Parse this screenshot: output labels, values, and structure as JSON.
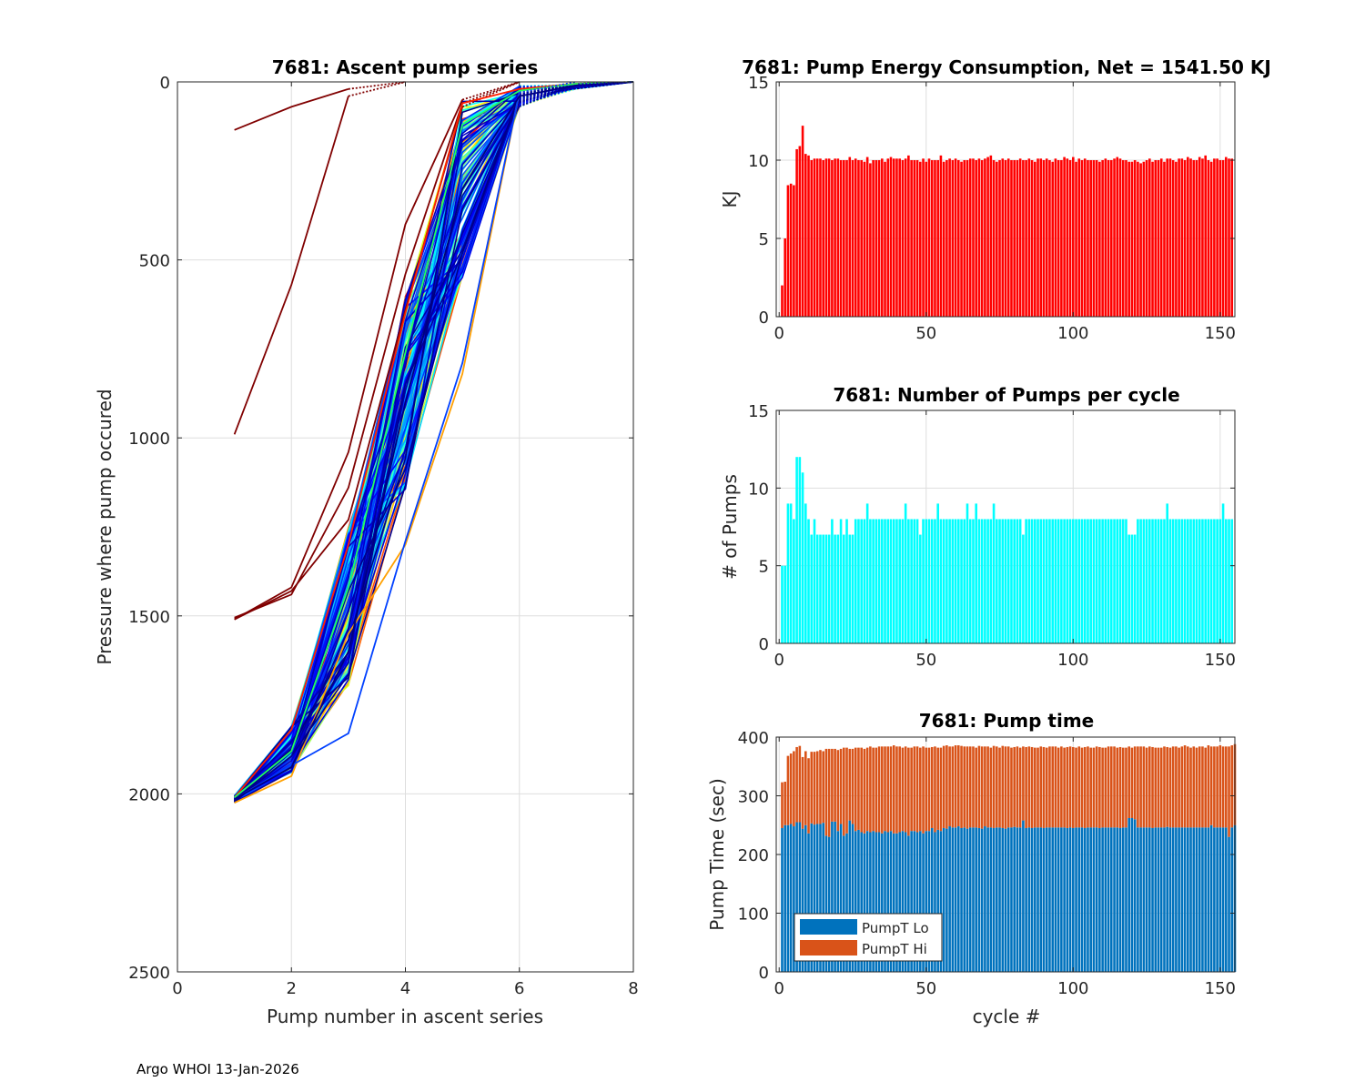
{
  "footer": "Argo WHOI 13-Jan-2026",
  "colors": {
    "energy_bar": "#ff0000",
    "pumps_bar": "#00ffff",
    "pumpt_lo": "#0072bd",
    "pumpt_hi": "#d95319",
    "grid": "#dedede",
    "axis": "#262626"
  },
  "chart_data": [
    {
      "id": "ascent",
      "type": "line",
      "title": "7681: Ascent pump series",
      "xlabel": "Pump number in ascent series",
      "ylabel": "Pressure where pump occured",
      "xlim": [
        0,
        8
      ],
      "ylim": [
        0,
        2500
      ],
      "y_reversed": true,
      "xticks": [
        0,
        2,
        4,
        6,
        8
      ],
      "yticks": [
        0,
        500,
        1000,
        1500,
        2000,
        2500
      ],
      "grid": true,
      "colormap": "jet",
      "series_count_approx": 155,
      "notes": "Each cycle is one line; colour by cycle (jet: early=dark red, late=dark blue). Final segments to surface drawn dotted.",
      "sample_series": [
        {
          "name": "cycle-1",
          "color": "#800000",
          "x": [
            1,
            2,
            3,
            4
          ],
          "y": [
            135,
            70,
            20,
            0
          ]
        },
        {
          "name": "cycle-2",
          "color": "#800000",
          "x": [
            1,
            2,
            3,
            4
          ],
          "y": [
            990,
            570,
            40,
            0
          ]
        },
        {
          "name": "cycle-3",
          "color": "#800000",
          "x": [
            1,
            2,
            3,
            4,
            5,
            6
          ],
          "y": [
            1510,
            1420,
            1040,
            400,
            50,
            0
          ]
        },
        {
          "name": "cycle-4",
          "color": "#800000",
          "x": [
            1,
            2,
            3,
            4,
            5,
            6
          ],
          "y": [
            1505,
            1440,
            1140,
            540,
            60,
            0
          ]
        },
        {
          "name": "cycle-5",
          "color": "#800000",
          "x": [
            1,
            2,
            3,
            4,
            5,
            6
          ],
          "y": [
            1510,
            1430,
            1230,
            640,
            70,
            0
          ]
        },
        {
          "name": "typical-early",
          "color": "#ff2000",
          "x": [
            1,
            2,
            3,
            4,
            5,
            6,
            7,
            8
          ],
          "y": [
            2010,
            1820,
            1300,
            650,
            60,
            20,
            5,
            0
          ]
        },
        {
          "name": "typical-mid",
          "color": "#20ff60",
          "x": [
            1,
            2,
            3,
            4,
            5,
            6,
            7,
            8
          ],
          "y": [
            2010,
            1880,
            1420,
            760,
            120,
            25,
            5,
            0
          ]
        },
        {
          "name": "outlier-orange",
          "color": "#ffa000",
          "x": [
            1,
            2,
            3,
            4,
            5,
            6,
            7
          ],
          "y": [
            2025,
            1950,
            1550,
            1300,
            820,
            30,
            0
          ]
        },
        {
          "name": "outlier-blue",
          "color": "#0040ff",
          "x": [
            1,
            2,
            3,
            4,
            5,
            6,
            7
          ],
          "y": [
            2015,
            1920,
            1830,
            1290,
            790,
            30,
            0
          ]
        },
        {
          "name": "typical-late",
          "color": "#000080",
          "x": [
            1,
            2,
            3,
            4,
            5,
            6,
            7,
            8
          ],
          "y": [
            2015,
            1925,
            1600,
            900,
            300,
            40,
            10,
            0
          ]
        }
      ]
    },
    {
      "id": "energy",
      "type": "bar",
      "title": "7681: Pump Energy Consumption,  Net = 1541.50 KJ",
      "xlabel": "",
      "ylabel": "KJ",
      "xlim": [
        -1,
        155
      ],
      "ylim": [
        0,
        15
      ],
      "xticks": [
        0,
        50,
        100,
        150
      ],
      "yticks": [
        0,
        5,
        10,
        15
      ],
      "grid": true,
      "x": "cycles 1..154",
      "values": [
        2.0,
        5.0,
        8.4,
        8.5,
        8.4,
        10.7,
        10.9,
        12.2,
        10.4,
        10.3,
        10.0,
        10.1,
        10.1,
        10.1,
        10.0,
        10.1,
        10.1,
        10.0,
        10.1,
        10.1,
        10.0,
        10.0,
        10.0,
        10.2,
        10.0,
        10.1,
        10.0,
        10.0,
        9.9,
        10.2,
        9.8,
        10.0,
        10.0,
        10.0,
        10.1,
        9.9,
        10.1,
        10.2,
        10.1,
        10.1,
        10.1,
        10.0,
        10.1,
        10.3,
        10.0,
        10.0,
        10.0,
        9.9,
        10.1,
        9.9,
        10.1,
        10.0,
        10.0,
        10.0,
        10.3,
        9.9,
        10.0,
        10.1,
        10.0,
        10.1,
        10.0,
        9.9,
        10.0,
        10.0,
        10.1,
        10.1,
        10.0,
        10.1,
        10.0,
        10.1,
        10.2,
        10.3,
        10.0,
        9.9,
        10.0,
        10.1,
        10.0,
        10.1,
        10.0,
        10.0,
        10.0,
        10.1,
        10.0,
        10.0,
        10.1,
        10.0,
        9.9,
        10.1,
        10.1,
        10.0,
        10.1,
        10.0,
        9.9,
        10.1,
        10.0,
        10.0,
        10.2,
        10.1,
        10.0,
        10.2,
        9.9,
        10.1,
        10.0,
        10.1,
        10.0,
        10.0,
        10.0,
        10.0,
        9.9,
        10.0,
        10.1,
        10.0,
        10.0,
        10.1,
        10.2,
        10.1,
        10.0,
        10.0,
        9.9,
        9.9,
        10.0,
        9.9,
        9.8,
        9.9,
        10.0,
        10.1,
        9.9,
        10.0,
        10.0,
        10.1,
        9.9,
        10.1,
        10.1,
        10.0,
        9.9,
        10.1,
        10.1,
        10.0,
        10.2,
        10.1,
        10.0,
        10.0,
        10.2,
        10.1,
        10.3,
        10.0,
        9.9,
        10.1,
        10.1,
        10.0,
        10.0,
        10.2,
        10.1,
        10.1
      ]
    },
    {
      "id": "npumps",
      "type": "bar",
      "title": "7681: Number of Pumps per cycle",
      "xlabel": "",
      "ylabel": "# of Pumps",
      "xlim": [
        -1,
        155
      ],
      "ylim": [
        0,
        15
      ],
      "xticks": [
        0,
        50,
        100,
        150
      ],
      "yticks": [
        0,
        5,
        10,
        15
      ],
      "grid": true,
      "x": "cycles 1..154",
      "values": [
        5,
        5,
        9,
        9,
        8,
        12,
        12,
        11,
        9,
        8,
        7,
        8,
        7,
        7,
        7,
        7,
        7,
        8,
        7,
        7,
        8,
        7,
        8,
        7,
        7,
        8,
        8,
        8,
        8,
        9,
        8,
        8,
        8,
        8,
        8,
        8,
        8,
        8,
        8,
        8,
        8,
        8,
        9,
        8,
        8,
        8,
        8,
        7,
        8,
        8,
        8,
        8,
        8,
        9,
        8,
        8,
        8,
        8,
        8,
        8,
        8,
        8,
        8,
        9,
        8,
        8,
        9,
        8,
        8,
        8,
        8,
        8,
        9,
        8,
        8,
        8,
        8,
        8,
        8,
        8,
        8,
        8,
        7,
        8,
        8,
        8,
        8,
        8,
        8,
        8,
        8,
        8,
        8,
        8,
        8,
        8,
        8,
        8,
        8,
        8,
        8,
        8,
        8,
        8,
        8,
        8,
        8,
        8,
        8,
        8,
        8,
        8,
        8,
        8,
        8,
        8,
        8,
        8,
        7,
        7,
        7,
        8,
        8,
        8,
        8,
        8,
        8,
        8,
        8,
        8,
        8,
        9,
        8,
        8,
        8,
        8,
        8,
        8,
        8,
        8,
        8,
        8,
        8,
        8,
        8,
        8,
        8,
        8,
        8,
        8,
        9,
        8,
        8,
        8
      ]
    },
    {
      "id": "pumptime",
      "type": "bar",
      "stacked": true,
      "title": "7681: Pump time",
      "xlabel": "cycle #",
      "ylabel": "Pump Time (sec)",
      "xlim": [
        -1,
        155
      ],
      "ylim": [
        0,
        400
      ],
      "xticks": [
        0,
        50,
        100,
        150
      ],
      "yticks": [
        0,
        100,
        200,
        300,
        400
      ],
      "grid": true,
      "legend": {
        "position": "bottom-left",
        "entries": [
          "PumpT Lo",
          "PumpT Hi"
        ]
      },
      "series": [
        {
          "name": "PumpT Lo",
          "values": [
            245,
            250,
            250,
            252,
            248,
            255,
            255,
            244,
            250,
            236,
            253,
            251,
            252,
            252,
            254,
            232,
            230,
            256,
            256,
            240,
            252,
            232,
            236,
            258,
            252,
            240,
            242,
            238,
            236,
            240,
            238,
            240,
            238,
            238,
            236,
            240,
            238,
            240,
            236,
            236,
            238,
            240,
            238,
            232,
            240,
            240,
            238,
            240,
            236,
            240,
            240,
            245,
            238,
            242,
            240,
            245,
            244,
            248,
            246,
            246,
            248,
            245,
            246,
            244,
            246,
            246,
            246,
            245,
            244,
            248,
            246,
            246,
            245,
            246,
            246,
            245,
            244,
            246,
            246,
            247,
            246,
            246,
            258,
            245,
            246,
            245,
            246,
            246,
            246,
            245,
            246,
            246,
            246,
            246,
            246,
            246,
            246,
            245,
            246,
            245,
            246,
            246,
            246,
            245,
            246,
            246,
            246,
            246,
            245,
            246,
            246,
            246,
            246,
            246,
            246,
            245,
            246,
            246,
            262,
            262,
            260,
            246,
            246,
            246,
            246,
            246,
            245,
            246,
            246,
            246,
            246,
            247,
            246,
            246,
            246,
            246,
            246,
            246,
            246,
            246,
            246,
            246,
            246,
            246,
            246,
            246,
            250,
            246,
            246,
            246,
            246,
            246,
            230,
            246,
            250
          ]
        },
        {
          "name": "PumpT Hi",
          "values": [
            78,
            74,
            118,
            120,
            128,
            128,
            130,
            122,
            126,
            128,
            122,
            124,
            124,
            126,
            122,
            148,
            150,
            124,
            124,
            138,
            128,
            150,
            146,
            122,
            128,
            142,
            140,
            144,
            144,
            142,
            146,
            142,
            144,
            146,
            148,
            144,
            146,
            144,
            150,
            148,
            146,
            142,
            146,
            150,
            142,
            144,
            146,
            142,
            148,
            142,
            142,
            138,
            146,
            140,
            142,
            140,
            142,
            136,
            138,
            140,
            138,
            140,
            138,
            140,
            138,
            138,
            136,
            140,
            140,
            136,
            138,
            136,
            140,
            138,
            136,
            140,
            140,
            138,
            136,
            136,
            138,
            136,
            126,
            138,
            138,
            138,
            136,
            136,
            138,
            138,
            136,
            138,
            138,
            138,
            136,
            138,
            136,
            138,
            138,
            138,
            136,
            138,
            136,
            138,
            138,
            136,
            136,
            138,
            138,
            136,
            136,
            138,
            138,
            138,
            136,
            138,
            136,
            136,
            122,
            120,
            124,
            138,
            138,
            138,
            136,
            138,
            138,
            136,
            136,
            136,
            138,
            136,
            136,
            138,
            138,
            136,
            138,
            140,
            138,
            136,
            138,
            136,
            138,
            138,
            136,
            140,
            134,
            138,
            138,
            140,
            138,
            138,
            154,
            140,
            138
          ]
        }
      ]
    }
  ]
}
